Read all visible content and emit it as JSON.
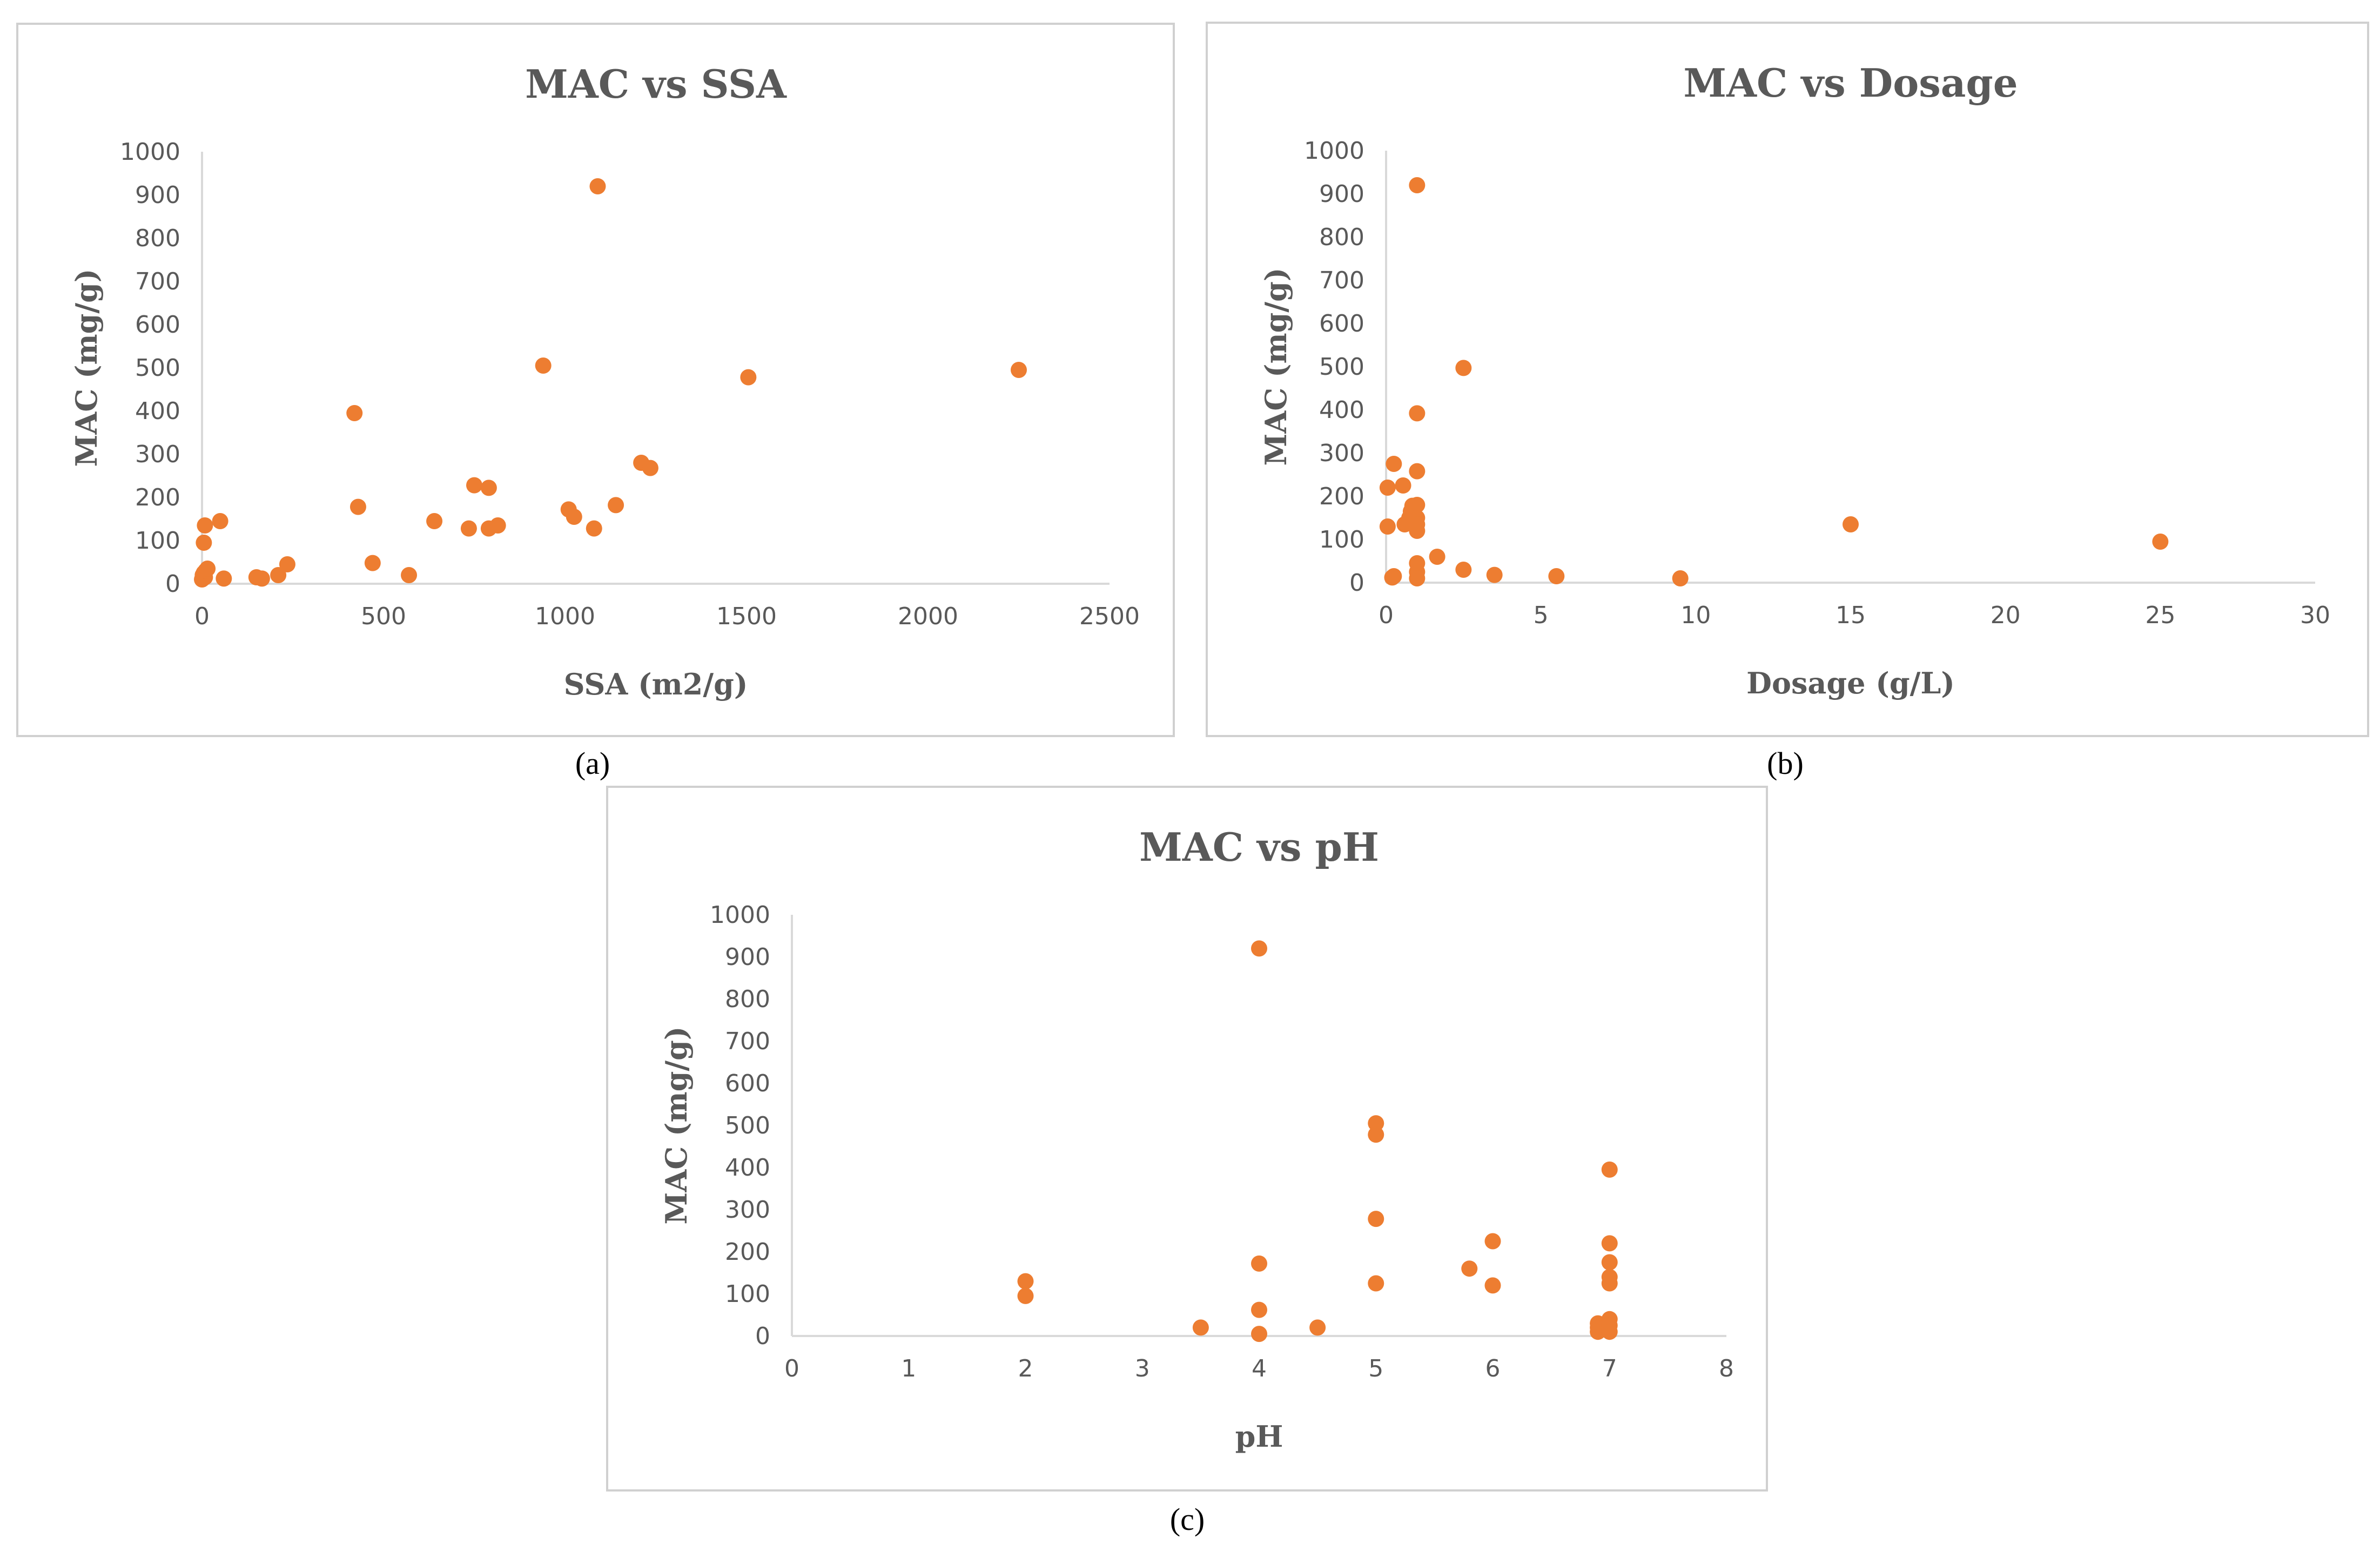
{
  "accent_color": "#ED7D31",
  "axis_color": "#d9d9d9",
  "text_color": "#595959",
  "captions": [
    "(a)",
    "(b)",
    "(c)"
  ],
  "chart_data": [
    {
      "type": "scatter",
      "title": "MAC vs SSA",
      "xlabel": "SSA (m2/g)",
      "ylabel": "MAC (mg/g)",
      "xlim": [
        0,
        2500
      ],
      "ylim": [
        0,
        1000
      ],
      "xticks": [
        "0",
        "500",
        "1000",
        "1500",
        "2000",
        "2500"
      ],
      "yticks": [
        "0",
        "100",
        "200",
        "300",
        "400",
        "500",
        "600",
        "700",
        "800",
        "900",
        "1000"
      ],
      "points": [
        {
          "x": 0,
          "y": 10
        },
        {
          "x": 2,
          "y": 20
        },
        {
          "x": 5,
          "y": 25
        },
        {
          "x": 8,
          "y": 15
        },
        {
          "x": 10,
          "y": 30
        },
        {
          "x": 15,
          "y": 35
        },
        {
          "x": 5,
          "y": 95
        },
        {
          "x": 8,
          "y": 135
        },
        {
          "x": 50,
          "y": 145
        },
        {
          "x": 60,
          "y": 12
        },
        {
          "x": 150,
          "y": 15
        },
        {
          "x": 165,
          "y": 12
        },
        {
          "x": 210,
          "y": 20
        },
        {
          "x": 235,
          "y": 45
        },
        {
          "x": 420,
          "y": 395
        },
        {
          "x": 430,
          "y": 178
        },
        {
          "x": 470,
          "y": 48
        },
        {
          "x": 570,
          "y": 20
        },
        {
          "x": 640,
          "y": 145
        },
        {
          "x": 735,
          "y": 128
        },
        {
          "x": 750,
          "y": 228
        },
        {
          "x": 790,
          "y": 222
        },
        {
          "x": 790,
          "y": 128
        },
        {
          "x": 815,
          "y": 135
        },
        {
          "x": 940,
          "y": 505
        },
        {
          "x": 1010,
          "y": 172
        },
        {
          "x": 1025,
          "y": 155
        },
        {
          "x": 1080,
          "y": 128
        },
        {
          "x": 1090,
          "y": 920
        },
        {
          "x": 1140,
          "y": 182
        },
        {
          "x": 1210,
          "y": 280
        },
        {
          "x": 1235,
          "y": 268
        },
        {
          "x": 1505,
          "y": 478
        },
        {
          "x": 2250,
          "y": 495
        }
      ]
    },
    {
      "type": "scatter",
      "title": "MAC vs Dosage",
      "xlabel": "Dosage (g/L)",
      "ylabel": "MAC (mg/g)",
      "xlim": [
        0,
        30
      ],
      "ylim": [
        0,
        1000
      ],
      "xticks": [
        "0",
        "5",
        "10",
        "15",
        "20",
        "25",
        "30"
      ],
      "yticks": [
        "0",
        "100",
        "200",
        "300",
        "400",
        "500",
        "600",
        "700",
        "800",
        "900",
        "1000"
      ],
      "points": [
        {
          "x": 0.05,
          "y": 130
        },
        {
          "x": 0.05,
          "y": 220
        },
        {
          "x": 0.2,
          "y": 12
        },
        {
          "x": 0.25,
          "y": 15
        },
        {
          "x": 0.25,
          "y": 275
        },
        {
          "x": 0.55,
          "y": 225
        },
        {
          "x": 0.6,
          "y": 135
        },
        {
          "x": 0.75,
          "y": 150
        },
        {
          "x": 0.8,
          "y": 165
        },
        {
          "x": 0.85,
          "y": 178
        },
        {
          "x": 1.0,
          "y": 920
        },
        {
          "x": 1.0,
          "y": 392
        },
        {
          "x": 1.0,
          "y": 258
        },
        {
          "x": 1.0,
          "y": 180
        },
        {
          "x": 1.0,
          "y": 150
        },
        {
          "x": 1.0,
          "y": 135
        },
        {
          "x": 1.0,
          "y": 120
        },
        {
          "x": 1.0,
          "y": 45
        },
        {
          "x": 1.0,
          "y": 25
        },
        {
          "x": 1.0,
          "y": 10
        },
        {
          "x": 1.65,
          "y": 60
        },
        {
          "x": 2.5,
          "y": 497
        },
        {
          "x": 2.5,
          "y": 30
        },
        {
          "x": 3.5,
          "y": 18
        },
        {
          "x": 5.5,
          "y": 15
        },
        {
          "x": 9.5,
          "y": 10
        },
        {
          "x": 15,
          "y": 135
        },
        {
          "x": 25,
          "y": 95
        }
      ]
    },
    {
      "type": "scatter",
      "title": "MAC vs pH",
      "xlabel": "pH",
      "ylabel": "MAC (mg/g)",
      "xlim": [
        0,
        8
      ],
      "ylim": [
        0,
        1000
      ],
      "xticks": [
        "0",
        "1",
        "2",
        "3",
        "4",
        "5",
        "6",
        "7",
        "8"
      ],
      "yticks": [
        "0",
        "100",
        "200",
        "300",
        "400",
        "500",
        "600",
        "700",
        "800",
        "900",
        "1000"
      ],
      "points": [
        {
          "x": 2,
          "y": 130
        },
        {
          "x": 2,
          "y": 95
        },
        {
          "x": 3.5,
          "y": 20
        },
        {
          "x": 4,
          "y": 920
        },
        {
          "x": 4,
          "y": 172
        },
        {
          "x": 4,
          "y": 62
        },
        {
          "x": 4,
          "y": 5
        },
        {
          "x": 4.5,
          "y": 20
        },
        {
          "x": 5,
          "y": 505
        },
        {
          "x": 5,
          "y": 478
        },
        {
          "x": 5,
          "y": 278
        },
        {
          "x": 5,
          "y": 125
        },
        {
          "x": 5.8,
          "y": 160
        },
        {
          "x": 6,
          "y": 225
        },
        {
          "x": 6,
          "y": 120
        },
        {
          "x": 6.9,
          "y": 30
        },
        {
          "x": 6.9,
          "y": 20
        },
        {
          "x": 6.9,
          "y": 10
        },
        {
          "x": 7,
          "y": 395
        },
        {
          "x": 7,
          "y": 220
        },
        {
          "x": 7,
          "y": 175
        },
        {
          "x": 7,
          "y": 140
        },
        {
          "x": 7,
          "y": 125
        },
        {
          "x": 7,
          "y": 40
        },
        {
          "x": 7,
          "y": 25
        },
        {
          "x": 7,
          "y": 10
        }
      ]
    }
  ]
}
